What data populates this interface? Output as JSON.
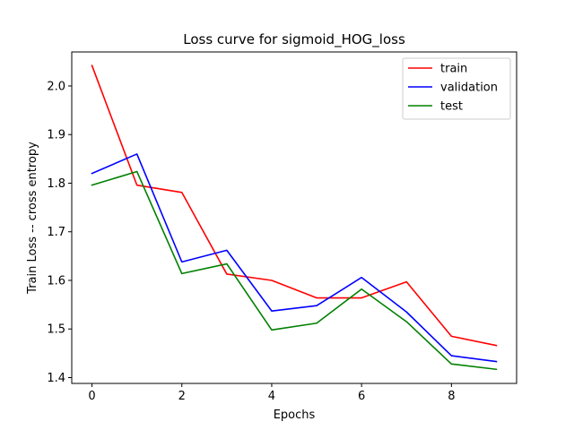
{
  "chart_data": {
    "type": "line",
    "title": "Loss curve for sigmoid_HOG_loss",
    "xlabel": "Epochs",
    "ylabel": "Train Loss -- cross entropy",
    "x": [
      0,
      1,
      2,
      3,
      4,
      5,
      6,
      7,
      8,
      9
    ],
    "xlim": [
      -0.45,
      9.45
    ],
    "ylim": [
      1.388,
      2.07
    ],
    "xticks": [
      0,
      2,
      4,
      6,
      8
    ],
    "yticks": [
      1.4,
      1.5,
      1.6,
      1.7,
      1.8,
      1.9,
      2.0
    ],
    "ytick_labels": [
      "1.4",
      "1.5",
      "1.6",
      "1.7",
      "1.8",
      "1.9",
      "2.0"
    ],
    "grid": false,
    "legend_position": "top-right",
    "series": [
      {
        "name": "train",
        "color": "#ff0000",
        "values": [
          2.042,
          1.796,
          1.781,
          1.613,
          1.6,
          1.564,
          1.564,
          1.597,
          1.485,
          1.466
        ]
      },
      {
        "name": "validation",
        "color": "#0000ff",
        "values": [
          1.82,
          1.86,
          1.638,
          1.662,
          1.537,
          1.548,
          1.606,
          1.535,
          1.445,
          1.433
        ]
      },
      {
        "name": "test",
        "color": "#008000",
        "values": [
          1.796,
          1.824,
          1.614,
          1.634,
          1.498,
          1.512,
          1.582,
          1.515,
          1.428,
          1.417
        ]
      }
    ]
  }
}
